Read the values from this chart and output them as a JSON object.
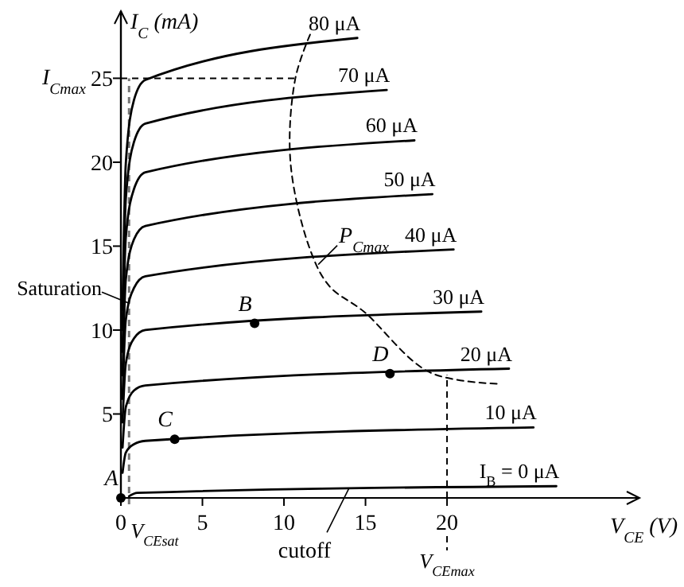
{
  "chart_data": {
    "type": "line",
    "xlabel": "V$_{CE}$ (V)",
    "ylabel": "I$_{C}$ (mA)",
    "xlim": [
      0,
      31.8
    ],
    "ylim": [
      0,
      29
    ],
    "xticks": [
      0,
      5,
      10,
      15,
      20
    ],
    "yticks": [
      5,
      10,
      15,
      20,
      25
    ],
    "grid": false,
    "marker": "none",
    "line_style": "solid",
    "series": [
      {
        "name": "80 μA",
        "color": "#000000",
        "x": [
          0.1,
          0.3,
          0.8,
          1.5,
          14.5
        ],
        "values": [
          11.2,
          19.9,
          23.7,
          24.9,
          27.4
        ]
      },
      {
        "name": "70 μA",
        "color": "#000000",
        "x": [
          0.1,
          0.3,
          0.8,
          1.5,
          16.3
        ],
        "values": [
          10,
          17.8,
          21.2,
          22.3,
          24.3
        ]
      },
      {
        "name": "60 μA",
        "color": "#000000",
        "x": [
          0.1,
          0.3,
          0.8,
          1.5,
          18
        ],
        "values": [
          8.7,
          15.5,
          18.4,
          19.4,
          21.3
        ]
      },
      {
        "name": "50 μA",
        "color": "#000000",
        "x": [
          0.1,
          0.3,
          0.8,
          1.5,
          19.1
        ],
        "values": [
          7.3,
          13,
          15.4,
          16.2,
          18.1
        ]
      },
      {
        "name": "40 μA",
        "color": "#000000",
        "x": [
          0.1,
          0.3,
          0.8,
          1.5,
          20.4
        ],
        "values": [
          5.9,
          10.6,
          12.5,
          13.2,
          14.8
        ]
      },
      {
        "name": "30 μA",
        "color": "#000000",
        "x": [
          0.1,
          0.3,
          0.8,
          1.5,
          22.1
        ],
        "values": [
          4.5,
          8,
          9.5,
          10,
          11.1
        ]
      },
      {
        "name": "20 μA",
        "color": "#000000",
        "x": [
          0.1,
          0.3,
          0.8,
          1.5,
          23.8
        ],
        "values": [
          3,
          5.4,
          6.4,
          6.7,
          7.7
        ]
      },
      {
        "name": "10 μA",
        "color": "#000000",
        "x": [
          0.1,
          0.3,
          0.8,
          1.5,
          25.3
        ],
        "values": [
          1.5,
          2.7,
          3.2,
          3.4,
          4.2
        ]
      },
      {
        "name": "I$_{B}$ = 0 μA",
        "color": "#000000",
        "x": [
          0.5,
          1,
          26.7
        ],
        "values": [
          0.1,
          0.3,
          0.7
        ]
      },
      {
        "color": "#000000",
        "line_style": "dashed",
        "x": [
          11.6,
          10.7,
          10.4,
          11.6,
          12.8,
          14.9,
          18.9,
          23.1
        ],
        "values": [
          27.6,
          25,
          20,
          14.8,
          12.6,
          11.1,
          7.5,
          6.8
        ]
      },
      {
        "type": "scatter",
        "marker": "circle",
        "color": "#000000",
        "x": [
          0,
          8.2,
          3.3,
          16.5
        ],
        "values": [
          0,
          10.4,
          3.5,
          7.4
        ]
      }
    ],
    "ref_lines": [
      {
        "axis": "y",
        "value": 25,
        "label": "I$_{Cmax}$",
        "line_style": "dashed",
        "color": "#000000"
      },
      {
        "axis": "x",
        "value": 20,
        "label": "V$_{CEmax}$",
        "line_style": "dashed",
        "color": "#000000"
      },
      {
        "axis": "x",
        "value": 0.5,
        "label": "V$_{CEsat}$",
        "line_style": "dashed",
        "color": "#777777"
      }
    ],
    "annotations": [
      {
        "text": "A",
        "x": 0,
        "y": 0
      },
      {
        "text": "B",
        "x": 8.2,
        "y": 10.4
      },
      {
        "text": "C",
        "x": 3.3,
        "y": 3.5
      },
      {
        "text": "D",
        "x": 16.5,
        "y": 7.4
      },
      {
        "text": "Saturation",
        "x": 0.5,
        "y": 11.5
      },
      {
        "text": "cutoff",
        "x": 14,
        "y": 0.6
      },
      {
        "text": "P$_{Cmax}$",
        "x": 12.1,
        "y": 13.9
      }
    ]
  }
}
